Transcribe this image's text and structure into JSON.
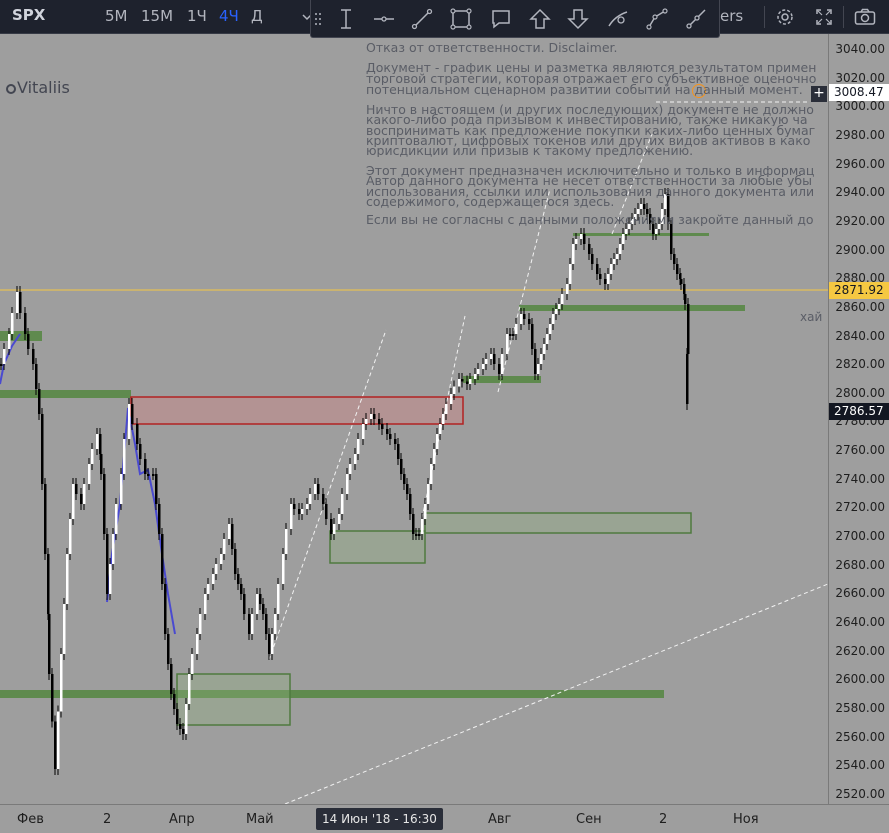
{
  "toolbar": {
    "symbol": "SPX",
    "timeframes": [
      {
        "label": "5М",
        "active": false
      },
      {
        "label": "15М",
        "active": false
      },
      {
        "label": "1Ч",
        "active": false
      },
      {
        "label": "4Ч",
        "active": true
      },
      {
        "label": "Д",
        "active": false
      }
    ],
    "partial_text": "ers",
    "right_icons": [
      "gear-icon",
      "fullscreen-icon",
      "camera-icon"
    ]
  },
  "drawing_tools": [
    "drag-handle-icon",
    "text-cursor-icon",
    "horizontal-line-icon",
    "trend-line-icon",
    "rectangle-icon",
    "comment-icon",
    "arrow-up-icon",
    "arrow-down-icon",
    "brush-icon",
    "path-icon",
    "ray-icon"
  ],
  "author": "Vitaliis",
  "disclaimer": {
    "title": "Отказ от ответственности. Disclaimer.",
    "para1": [
      "Документ - график цены и разметка являются результатом примен",
      "торговой стратегии, которая отражает его субъективное оценочно",
      "потенциальном сценарном развитии событий на данный момент."
    ],
    "para2": [
      "Ничто в настоящем (и других последующих) документе не должно",
      "какого-либо рода призывом к инвестированию, также никакую ча",
      "воспринимать как предложение покупки каких-либо ценных бумаг",
      "криптовалют, цифровых токенов или других видов активов в како",
      "юрисдикции или призыв к такому предложению."
    ],
    "para3": [
      "Этот документ предназначен исключительно и только в информац",
      "Автор данного документа не несет ответственности за любые убы",
      "использования, ссылки или использования данного документа или",
      "содержимого, содержащегося здесь."
    ],
    "para4": [
      "Если вы не согласны с данными положениями закройте данный до"
    ]
  },
  "hai_label": "хай",
  "price_axis": {
    "ticks": [
      "3040.00",
      "3020.00",
      "3000.00",
      "2980.00",
      "2960.00",
      "2940.00",
      "2920.00",
      "2900.00",
      "2880.00",
      "2860.00",
      "2840.00",
      "2820.00",
      "2800.00",
      "2780.00",
      "2760.00",
      "2740.00",
      "2720.00",
      "2700.00",
      "2680.00",
      "2660.00",
      "2640.00",
      "2620.00",
      "2600.00",
      "2580.00",
      "2560.00",
      "2540.00",
      "2520.00"
    ],
    "crosshair_price": "3008.47",
    "high_price": "2871.92",
    "last_price": "2786.57"
  },
  "time_axis": {
    "ticks": [
      "Фев",
      "2",
      "Апр",
      "Май",
      "Авг",
      "Сен",
      "2",
      "Ноя"
    ],
    "cursor_label": "14 Июн '18 - 16:30"
  },
  "colors": {
    "background": "#9e9e9e",
    "zone_green": "#5f8a4e",
    "zone_red": "#b22222",
    "high_line": "#f5c842",
    "accent": "#2962ff"
  }
}
